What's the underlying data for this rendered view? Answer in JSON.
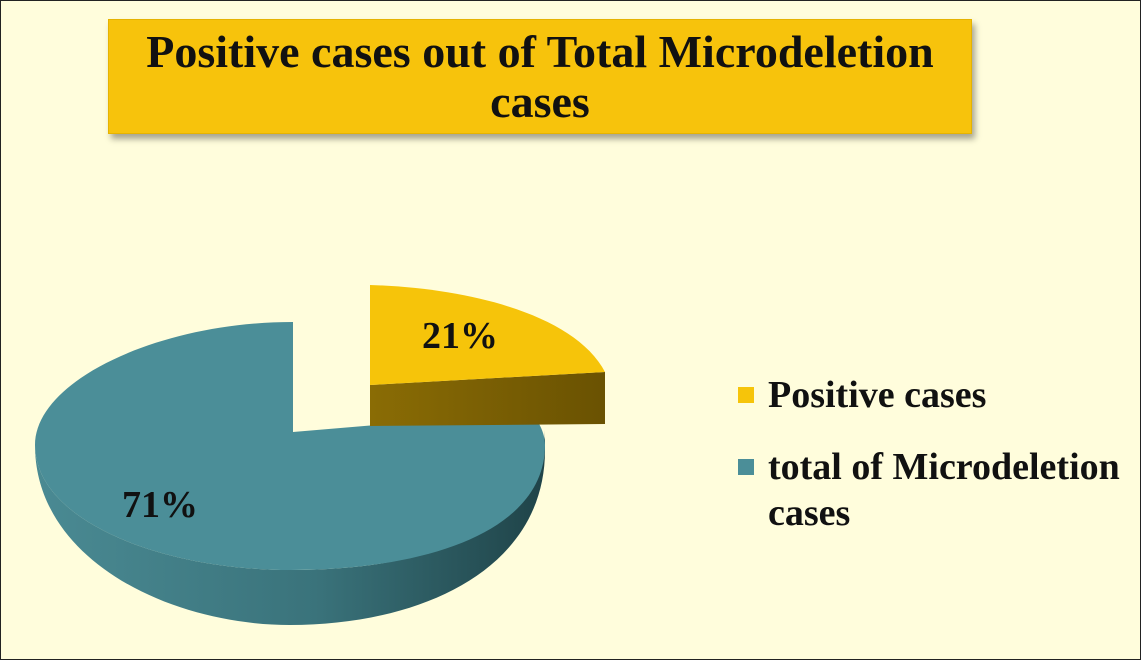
{
  "chart_data": {
    "type": "pie",
    "title": "Positive cases out of Total Microdeletion cases",
    "slices": [
      {
        "label": "Positive cases",
        "value": 21,
        "display": "21%",
        "color": "#f6c40a",
        "exploded": true
      },
      {
        "label": "total of Microdeletion cases",
        "value": 71,
        "display": "71%",
        "color": "#4b8e98",
        "exploded": false
      }
    ],
    "legend_position": "right",
    "style": "3d-exploded"
  },
  "colors": {
    "background": "#fffddc",
    "title_fill": "#f7c30c",
    "positive": "#f6c40a",
    "positive_side": "#7d6203",
    "total": "#4b8e98",
    "total_side": "#2d5c63"
  }
}
